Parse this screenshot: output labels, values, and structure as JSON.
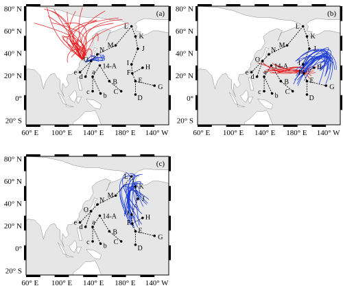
{
  "panels": [
    {
      "id": "a",
      "letter": "(a)",
      "lat_ticks": [
        "80° N",
        "60° N",
        "40° N",
        "20° N",
        "0°",
        "20° S"
      ],
      "lon_ticks": [
        "60° E",
        "100° E",
        "140° E",
        "180° E",
        "140° W"
      ],
      "red_count": 28,
      "blue_count": 6,
      "red_origin": [
        126,
        34
      ],
      "blue_origin": [
        130,
        32
      ]
    },
    {
      "id": "b",
      "letter": "(b)",
      "lat_ticks": [
        "80° N",
        "60° N",
        "40° N",
        "20° N",
        "0°",
        "20° S"
      ],
      "lon_ticks": [
        "60° E",
        "100° E",
        "140° E",
        "180° E",
        "140° W"
      ],
      "red_count": 10,
      "blue_count": 22
    },
    {
      "id": "c",
      "letter": "(c)",
      "lat_ticks": [
        "80° N",
        "60° N",
        "40° N",
        "20° N",
        "0°",
        "20° S"
      ],
      "lon_ticks": [
        "60° E",
        "100° E",
        "140° E",
        "180° E",
        "140° W"
      ],
      "red_count": 0,
      "blue_count": 22
    }
  ],
  "stations": [
    {
      "label": "L",
      "lon": 188,
      "lat": 64
    },
    {
      "label": "K",
      "lon": 193,
      "lat": 55
    },
    {
      "label": "M",
      "lon": 168,
      "lat": 47
    },
    {
      "label": "J",
      "lon": 196,
      "lat": 44
    },
    {
      "label": "N",
      "lon": 145,
      "lat": 39
    },
    {
      "label": "O",
      "lon": 137,
      "lat": 33
    },
    {
      "label": "14-A",
      "lon": 148,
      "lat": 29
    },
    {
      "label": "I",
      "lon": 188,
      "lat": 30
    },
    {
      "label": "H",
      "lon": 202,
      "lat": 27
    },
    {
      "label": "F",
      "lon": 189,
      "lat": 22
    },
    {
      "label": "e",
      "lon": 123,
      "lat": 23
    },
    {
      "label": "d",
      "lon": 130,
      "lat": 19
    },
    {
      "label": "a",
      "lon": 139,
      "lat": 19
    },
    {
      "label": "B",
      "lon": 160,
      "lat": 15
    },
    {
      "label": "E",
      "lon": 193,
      "lat": 15
    },
    {
      "label": "G",
      "lon": 217,
      "lat": 11
    },
    {
      "label": "c",
      "lon": 139,
      "lat": 6
    },
    {
      "label": "b",
      "lon": 149,
      "lat": 4
    },
    {
      "label": "C",
      "lon": 175,
      "lat": 6
    },
    {
      "label": "D",
      "lon": 193,
      "lat": 3
    }
  ],
  "route_paths": [
    [
      "L",
      "K",
      "J",
      "I",
      "F",
      "E",
      "D"
    ],
    [
      "L",
      "M",
      "N",
      "O",
      "e"
    ],
    [
      "14-A",
      "a",
      "c"
    ],
    [
      "14-A",
      "B",
      "C"
    ],
    [
      "O",
      "d"
    ],
    [
      "F",
      "H"
    ],
    [
      "E",
      "G"
    ],
    [
      "a",
      "b"
    ]
  ],
  "colors": {
    "land": "#ffffff",
    "ocean": "#e6e6e6",
    "red": "#e41a1c",
    "blue": "#1f3fd6",
    "route": "#000000"
  }
}
